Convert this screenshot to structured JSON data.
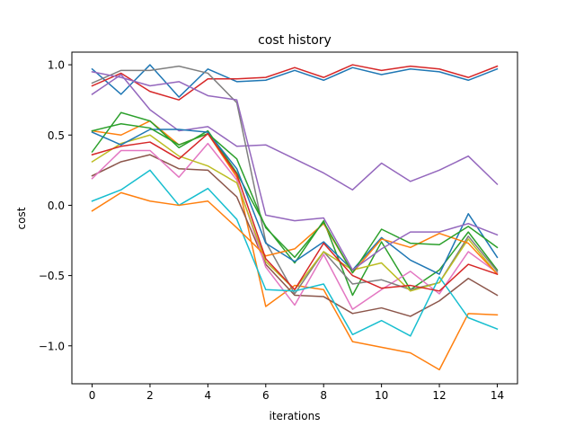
{
  "chart_data": {
    "type": "line",
    "title": "cost history",
    "xlabel": "iterations",
    "ylabel": "cost",
    "xlim": [
      -0.7,
      14.7
    ],
    "ylim": [
      -1.27,
      1.09
    ],
    "grid": false,
    "legend": "none",
    "x": [
      0,
      1,
      2,
      3,
      4,
      5,
      6,
      7,
      8,
      9,
      10,
      11,
      12,
      13,
      14
    ],
    "x_ticks": [
      0,
      2,
      4,
      6,
      8,
      10,
      12,
      14
    ],
    "x_tick_labels": [
      "0",
      "2",
      "4",
      "6",
      "8",
      "10",
      "12",
      "14"
    ],
    "y_ticks": [
      -1.0,
      -0.5,
      0.0,
      0.5,
      1.0
    ],
    "y_tick_labels": [
      "−1.0",
      "−0.5",
      "0.0",
      "0.5",
      "1.0"
    ],
    "series": [
      {
        "color": "#1f77b4",
        "values": [
          0.97,
          0.79,
          1.0,
          0.77,
          0.97,
          0.88,
          0.89,
          0.96,
          0.89,
          0.98,
          0.93,
          0.97,
          0.95,
          0.89,
          0.97
        ]
      },
      {
        "color": "#ff7f0e",
        "values": [
          0.53,
          0.5,
          0.6,
          0.43,
          0.51,
          0.2,
          -0.72,
          -0.57,
          -0.6,
          -0.97,
          -1.01,
          -1.05,
          -1.17,
          -0.77,
          -0.78
        ]
      },
      {
        "color": "#2ca02c",
        "values": [
          0.38,
          0.66,
          0.6,
          0.41,
          0.53,
          0.23,
          -0.15,
          -0.41,
          -0.11,
          -0.64,
          -0.26,
          -0.6,
          -0.46,
          -0.19,
          -0.46
        ]
      },
      {
        "color": "#d62728",
        "values": [
          0.85,
          0.94,
          0.81,
          0.75,
          0.9,
          0.9,
          0.91,
          0.98,
          0.91,
          1.0,
          0.96,
          0.99,
          0.97,
          0.91,
          0.99
        ]
      },
      {
        "color": "#9467bd",
        "values": [
          0.79,
          0.93,
          0.68,
          0.53,
          0.56,
          0.42,
          0.43,
          0.33,
          0.23,
          0.11,
          0.3,
          0.17,
          0.25,
          0.35,
          0.15
        ]
      },
      {
        "color": "#8c564b",
        "values": [
          0.21,
          0.31,
          0.36,
          0.26,
          0.25,
          0.06,
          -0.42,
          -0.64,
          -0.65,
          -0.77,
          -0.73,
          -0.79,
          -0.68,
          -0.52,
          -0.64
        ]
      },
      {
        "color": "#e377c2",
        "values": [
          0.19,
          0.39,
          0.39,
          0.2,
          0.44,
          0.18,
          -0.44,
          -0.71,
          -0.35,
          -0.74,
          -0.6,
          -0.47,
          -0.63,
          -0.33,
          -0.48
        ]
      },
      {
        "color": "#7f7f7f",
        "values": [
          0.87,
          0.96,
          0.96,
          0.99,
          0.94,
          0.73,
          -0.26,
          -0.63,
          -0.33,
          -0.56,
          -0.53,
          -0.6,
          -0.55,
          -0.22,
          -0.47
        ]
      },
      {
        "color": "#bcbd22",
        "values": [
          0.31,
          0.44,
          0.5,
          0.35,
          0.28,
          0.16,
          -0.4,
          -0.6,
          -0.33,
          -0.46,
          -0.41,
          -0.61,
          -0.55,
          -0.24,
          -0.49
        ]
      },
      {
        "color": "#17becf",
        "values": [
          0.03,
          0.11,
          0.25,
          0.0,
          0.12,
          -0.1,
          -0.6,
          -0.61,
          -0.56,
          -0.92,
          -0.82,
          -0.93,
          -0.51,
          -0.8,
          -0.88
        ]
      },
      {
        "color": "#1f77b4",
        "values": [
          0.52,
          0.43,
          0.54,
          0.54,
          0.52,
          0.26,
          -0.27,
          -0.4,
          -0.26,
          -0.46,
          -0.23,
          -0.39,
          -0.49,
          -0.06,
          -0.37
        ]
      },
      {
        "color": "#ff7f0e",
        "values": [
          -0.04,
          0.09,
          0.03,
          0.0,
          0.03,
          -0.16,
          -0.36,
          -0.31,
          -0.13,
          -0.48,
          -0.24,
          -0.3,
          -0.2,
          -0.27,
          -0.49
        ]
      },
      {
        "color": "#2ca02c",
        "values": [
          0.53,
          0.58,
          0.55,
          0.43,
          0.51,
          0.33,
          -0.16,
          -0.37,
          -0.12,
          -0.48,
          -0.17,
          -0.27,
          -0.28,
          -0.15,
          -0.3
        ]
      },
      {
        "color": "#d62728",
        "values": [
          0.36,
          0.42,
          0.45,
          0.33,
          0.51,
          0.22,
          -0.38,
          -0.6,
          -0.27,
          -0.5,
          -0.59,
          -0.57,
          -0.61,
          -0.42,
          -0.49
        ]
      },
      {
        "color": "#9467bd",
        "values": [
          0.95,
          0.91,
          0.85,
          0.88,
          0.78,
          0.75,
          -0.07,
          -0.11,
          -0.09,
          -0.46,
          -0.31,
          -0.19,
          -0.19,
          -0.13,
          -0.21
        ]
      }
    ]
  }
}
